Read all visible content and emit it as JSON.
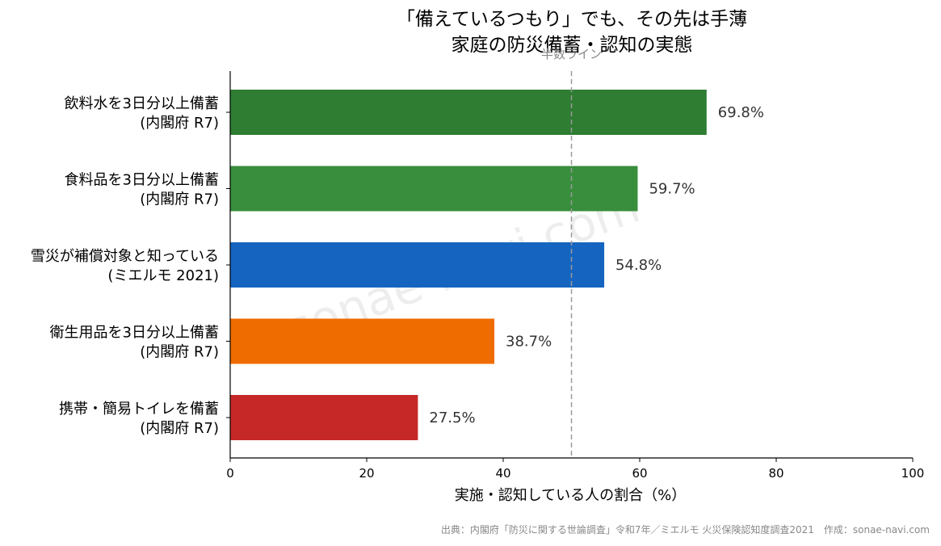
{
  "chart_data": {
    "type": "bar",
    "orientation": "horizontal",
    "title_lines": [
      "「備えているつもり」でも、その先は手薄",
      "家庭の防災備蓄・認知の実態"
    ],
    "categories": [
      [
        "飲料水を3日分以上備蓄",
        "(内閣府 R7)"
      ],
      [
        "食料品を3日分以上備蓄",
        "(内閣府 R7)"
      ],
      [
        "雪災が補償対象と知っている",
        "(ミエルモ 2021)"
      ],
      [
        "衛生用品を3日分以上備蓄",
        "(内閣府 R7)"
      ],
      [
        "携帯・簡易トイレを備蓄",
        "(内閣府 R7)"
      ]
    ],
    "values": [
      69.8,
      59.7,
      54.8,
      38.7,
      27.5
    ],
    "value_labels": [
      "69.8%",
      "59.7%",
      "54.8%",
      "38.7%",
      "27.5%"
    ],
    "colors": [
      "#2e7d32",
      "#388e3c",
      "#1565c0",
      "#ef6c00",
      "#c62828"
    ],
    "xlabel": "実施・認知している人の割合（%）",
    "xlim": [
      0,
      100
    ],
    "xticks": [
      0,
      20,
      40,
      60,
      80,
      100
    ],
    "reference_line": {
      "value": 50,
      "label": "半数ライン",
      "color": "#999999"
    },
    "grid": false,
    "legend": "none"
  },
  "footer": "出典：内閣府「防災に関する世論調査」令和7年／ミエルモ 火災保険認知度調査2021　作成：sonae-navi.com",
  "watermark": "sonae-navi.com"
}
